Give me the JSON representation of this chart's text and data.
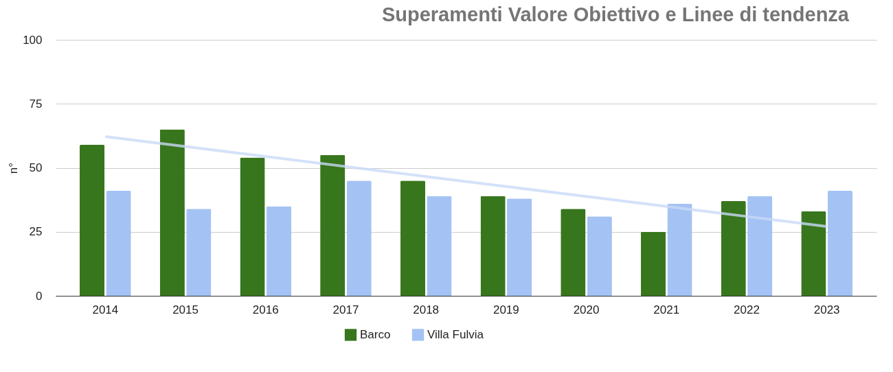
{
  "chart_data": {
    "type": "bar",
    "title": "Superamenti Valore Obiettivo e Linee di tendenza",
    "ylabel": "n°",
    "categories": [
      "2014",
      "2015",
      "2016",
      "2017",
      "2018",
      "2019",
      "2020",
      "2021",
      "2022",
      "2023"
    ],
    "series": [
      {
        "name": "Barco",
        "color": "#38761d",
        "values": [
          59,
          65,
          54,
          55,
          45,
          39,
          34,
          25,
          37,
          33
        ]
      },
      {
        "name": "Villa Fulvia",
        "color": "#a4c2f4",
        "values": [
          41,
          34,
          35,
          45,
          39,
          38,
          31,
          36,
          39,
          41
        ]
      },
      {
        "type": "line",
        "color": "#c9daf8",
        "values": [
          62.2,
          58.3,
          54.4,
          50.5,
          46.6,
          42.7,
          38.8,
          34.9,
          31.0,
          27.1
        ]
      }
    ],
    "ylim": [
      0,
      100
    ],
    "yticks": [
      0,
      25,
      50,
      75,
      100
    ],
    "grid": "y",
    "legend": "bottom"
  }
}
